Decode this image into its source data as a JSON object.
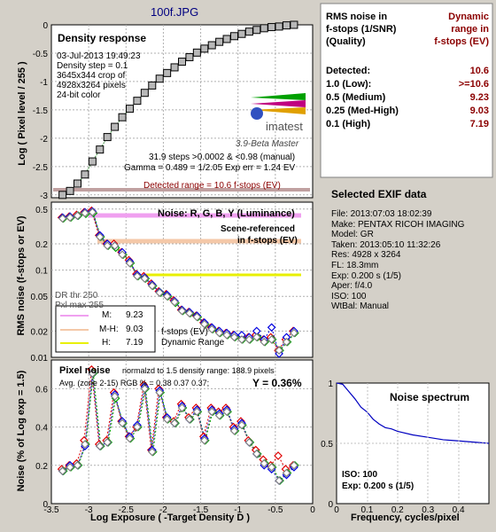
{
  "file_title": "100f.JPG",
  "density_panel": {
    "title": "Density response",
    "info_lines": [
      "03-Jul-2013 19:49:23",
      "Density step = 0.1",
      "3645x344 crop of",
      "4928x3264 pixels",
      "24-bit color"
    ],
    "logo_text": "imatest",
    "version": "3.9-Beta  Master",
    "steps_line": "31.9 steps >0.0002 & <0.98 (manual)",
    "gamma_line": "Gamma = 0.489 = 1/2.05  Exp err = 1.24 EV",
    "detected_range": "Detected range = 10.6 f-stops (EV)",
    "ylabel": "Log ( Pixel level / 255 )",
    "ytick_labels": [
      "0",
      "-0.5",
      "-1",
      "-1.5",
      "-2",
      "-2.5",
      "-3"
    ]
  },
  "noise_panel": {
    "title": "Noise: R, G, B, Y (Luminance)",
    "scene_line1": "Scene-referenced",
    "scene_line2": "in f-stops (EV)",
    "ylabel": "RMS noise (f-stops or EV)",
    "ytick_labels": [
      "0.5",
      "0.2",
      "0.1",
      "0.05",
      "0.02",
      "0.01"
    ],
    "dr_thr": "DR thr 250",
    "pxl_max": "Pxl max 255",
    "legend": [
      {
        "key": "M:",
        "value": "9.23",
        "color": "#f0a0f0"
      },
      {
        "key": "M-H:",
        "value": "9.03",
        "color": "#f4c8a8"
      },
      {
        "key": "H:",
        "value": "7.19",
        "color": "#e8f000"
      }
    ],
    "fstops_line1": "f-stops (EV)",
    "fstops_line2": "Dynamic Range"
  },
  "pixel_panel": {
    "title": "Pixel noise",
    "norm_line": "normalzd to 1.5 density range: 188.9 pixels",
    "avg_line": "Avg. (zone 2-15) RGB % = 0.38  0.37  0.37;",
    "y_value": "Y = 0.36%",
    "ylabel": "Noise (% of Log exp = 1.5)",
    "ytick_labels": [
      "0.6",
      "0.4",
      "0.2",
      "0"
    ],
    "xlabel": "Log Exposure ( -Target Density D )",
    "xtick_labels": [
      "-3.5",
      "-3",
      "-2.5",
      "-2",
      "-1.5",
      "-1",
      "-0.5",
      "0"
    ]
  },
  "dr_table": {
    "header_left": [
      "RMS noise in",
      "f-stops (1/SNR)",
      "(Quality)"
    ],
    "header_right": [
      "Dynamic",
      "range in",
      "f-stops (EV)"
    ],
    "rows": [
      {
        "label": "Detected:",
        "value": "10.6"
      },
      {
        "label": "1.0   (Low):",
        "value": ">=10.6"
      },
      {
        "label": "0.5   (Medium)",
        "value": "9.23"
      },
      {
        "label": "0.25 (Med-High)",
        "value": "9.03"
      },
      {
        "label": "0.1   (High)",
        "value": "7.19"
      }
    ]
  },
  "exif": {
    "title": "Selected EXIF data",
    "lines": [
      "File:  2013:07:03 18:02:39",
      "Make:  PENTAX RICOH IMAGING",
      "Model: GR",
      "Taken: 2013:05:10 11:32:26",
      "Res:   4928 x 3264",
      "FL:  18.3mm",
      "Exp:  0.200 s  (1/5)",
      "Aper:  f/4.0",
      "ISO:   100",
      "WtBal: Manual"
    ]
  },
  "spectrum": {
    "title": "Noise spectrum",
    "iso_line": "ISO:    100",
    "exp_line": "Exp:   0.200 s   (1/5)",
    "xlabel": "Frequency, cycles/pixel",
    "ytick_labels": [
      "1",
      "0.5",
      "0"
    ],
    "xtick_labels": [
      "0",
      "0.1",
      "0.2",
      "0.3",
      "0.4"
    ]
  },
  "colors": {
    "red": "#e00000",
    "green": "#00a000",
    "blue": "#0000e0",
    "gray": "#808080",
    "accent": "#8b0000"
  },
  "chart_data": [
    {
      "type": "line",
      "ylabel": "Log ( Pixel level / 255 )",
      "xlim": [
        -3.5,
        0
      ],
      "ylim": [
        -3.05,
        0
      ],
      "x": [
        -3.35,
        -3.25,
        -3.15,
        -3.05,
        -2.95,
        -2.85,
        -2.75,
        -2.65,
        -2.55,
        -2.45,
        -2.35,
        -2.25,
        -2.15,
        -2.05,
        -1.95,
        -1.85,
        -1.75,
        -1.65,
        -1.55,
        -1.45,
        -1.35,
        -1.25,
        -1.15,
        -1.05,
        -0.95,
        -0.85,
        -0.75,
        -0.65,
        -0.55,
        -0.45,
        -0.35,
        -0.25
      ],
      "y": [
        -3.0,
        -2.93,
        -2.8,
        -2.64,
        -2.41,
        -2.2,
        -1.98,
        -1.8,
        -1.63,
        -1.48,
        -1.34,
        -1.2,
        -1.07,
        -0.95,
        -0.85,
        -0.75,
        -0.65,
        -0.57,
        -0.49,
        -0.42,
        -0.36,
        -0.3,
        -0.25,
        -0.2,
        -0.16,
        -0.12,
        -0.09,
        -0.06,
        -0.04,
        -0.03,
        -0.01,
        0.0
      ]
    },
    {
      "type": "line",
      "ylabel": "RMS noise (f-stops or EV)",
      "yscale": "log",
      "xlim": [
        -3.5,
        0
      ],
      "ylim": [
        0.01,
        0.6
      ],
      "x": [
        -3.35,
        -3.25,
        -3.15,
        -3.05,
        -2.95,
        -2.85,
        -2.75,
        -2.65,
        -2.55,
        -2.45,
        -2.35,
        -2.25,
        -2.15,
        -2.05,
        -1.95,
        -1.85,
        -1.75,
        -1.65,
        -1.55,
        -1.45,
        -1.35,
        -1.25,
        -1.15,
        -1.05,
        -0.95,
        -0.85,
        -0.75,
        -0.65,
        -0.55,
        -0.45,
        -0.35,
        -0.25
      ],
      "series": [
        {
          "name": "R",
          "values": [
            0.4,
            0.41,
            0.43,
            0.46,
            0.48,
            0.25,
            0.2,
            0.2,
            0.16,
            0.13,
            0.09,
            0.085,
            0.07,
            0.057,
            0.053,
            0.045,
            0.035,
            0.033,
            0.03,
            0.025,
            0.022,
            0.02,
            0.019,
            0.018,
            0.017,
            0.017,
            0.018,
            0.016,
            0.017,
            0.012,
            0.016,
            0.02
          ]
        },
        {
          "name": "G",
          "values": [
            0.39,
            0.4,
            0.42,
            0.44,
            0.45,
            0.24,
            0.19,
            0.18,
            0.15,
            0.12,
            0.085,
            0.08,
            0.066,
            0.055,
            0.05,
            0.042,
            0.034,
            0.032,
            0.029,
            0.024,
            0.021,
            0.019,
            0.018,
            0.017,
            0.016,
            0.016,
            0.017,
            0.015,
            0.016,
            0.012,
            0.015,
            0.019
          ]
        },
        {
          "name": "B",
          "values": [
            0.4,
            0.41,
            0.42,
            0.46,
            0.47,
            0.25,
            0.2,
            0.19,
            0.16,
            0.125,
            0.088,
            0.082,
            0.068,
            0.056,
            0.052,
            0.044,
            0.035,
            0.033,
            0.03,
            0.025,
            0.022,
            0.02,
            0.019,
            0.018,
            0.018,
            0.017,
            0.02,
            0.016,
            0.022,
            0.011,
            0.017,
            0.02
          ]
        },
        {
          "name": "Y",
          "values": [
            0.39,
            0.4,
            0.42,
            0.45,
            0.46,
            0.24,
            0.19,
            0.19,
            0.15,
            0.12,
            0.085,
            0.08,
            0.066,
            0.055,
            0.05,
            0.043,
            0.034,
            0.032,
            0.029,
            0.024,
            0.021,
            0.019,
            0.018,
            0.017,
            0.016,
            0.016,
            0.017,
            0.015,
            0.016,
            0.012,
            0.015,
            0.019
          ]
        }
      ]
    },
    {
      "type": "line",
      "xlabel": "Log Exposure ( -Target Density D )",
      "ylabel": "Noise (% of Log exp = 1.5)",
      "xlim": [
        -3.5,
        0
      ],
      "ylim": [
        0,
        0.75
      ],
      "x": [
        -3.35,
        -3.25,
        -3.15,
        -3.05,
        -2.95,
        -2.85,
        -2.75,
        -2.65,
        -2.55,
        -2.45,
        -2.35,
        -2.25,
        -2.15,
        -2.05,
        -1.95,
        -1.85,
        -1.75,
        -1.65,
        -1.55,
        -1.45,
        -1.35,
        -1.25,
        -1.15,
        -1.05,
        -0.95,
        -0.85,
        -0.75,
        -0.65,
        -0.55,
        -0.45,
        -0.35,
        -0.25
      ],
      "series": [
        {
          "name": "R",
          "values": [
            0.18,
            0.2,
            0.21,
            0.33,
            0.7,
            0.31,
            0.33,
            0.58,
            0.43,
            0.35,
            0.4,
            0.62,
            0.28,
            0.6,
            0.45,
            0.43,
            0.52,
            0.45,
            0.5,
            0.35,
            0.5,
            0.48,
            0.5,
            0.4,
            0.43,
            0.33,
            0.28,
            0.23,
            0.2,
            0.25,
            0.18,
            0.2
          ]
        },
        {
          "name": "G",
          "values": [
            0.17,
            0.19,
            0.2,
            0.31,
            0.68,
            0.3,
            0.32,
            0.55,
            0.42,
            0.34,
            0.4,
            0.6,
            0.27,
            0.58,
            0.44,
            0.42,
            0.5,
            0.44,
            0.48,
            0.33,
            0.48,
            0.46,
            0.48,
            0.38,
            0.41,
            0.32,
            0.26,
            0.21,
            0.19,
            0.12,
            0.16,
            0.2
          ]
        },
        {
          "name": "B",
          "values": [
            0.17,
            0.2,
            0.2,
            0.3,
            0.68,
            0.3,
            0.32,
            0.57,
            0.43,
            0.35,
            0.41,
            0.61,
            0.28,
            0.59,
            0.45,
            0.42,
            0.51,
            0.44,
            0.49,
            0.34,
            0.49,
            0.47,
            0.49,
            0.39,
            0.42,
            0.32,
            0.26,
            0.2,
            0.18,
            0.12,
            0.15,
            0.19
          ]
        },
        {
          "name": "Y",
          "values": [
            0.17,
            0.19,
            0.2,
            0.31,
            0.68,
            0.3,
            0.32,
            0.56,
            0.42,
            0.34,
            0.4,
            0.6,
            0.27,
            0.58,
            0.44,
            0.42,
            0.5,
            0.44,
            0.48,
            0.33,
            0.48,
            0.46,
            0.48,
            0.38,
            0.41,
            0.32,
            0.26,
            0.21,
            0.19,
            0.12,
            0.16,
            0.2
          ]
        }
      ]
    },
    {
      "type": "line",
      "title": "Noise spectrum",
      "xlabel": "Frequency, cycles/pixel",
      "xlim": [
        0,
        0.5
      ],
      "ylim": [
        0,
        1
      ],
      "x": [
        0,
        0.02,
        0.04,
        0.06,
        0.08,
        0.1,
        0.12,
        0.14,
        0.16,
        0.18,
        0.2,
        0.25,
        0.3,
        0.35,
        0.4,
        0.45,
        0.5
      ],
      "values": [
        1.0,
        0.99,
        0.93,
        0.87,
        0.8,
        0.76,
        0.7,
        0.66,
        0.63,
        0.62,
        0.6,
        0.57,
        0.55,
        0.53,
        0.52,
        0.51,
        0.5
      ]
    }
  ]
}
